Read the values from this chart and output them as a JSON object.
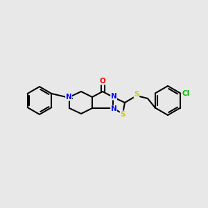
{
  "background_color": "#e8e8e8",
  "bond_color": "#000000",
  "atom_colors": {
    "N": "#0000ff",
    "O": "#ff0000",
    "S": "#cccc00",
    "Cl": "#00bb00",
    "C": "#000000"
  },
  "figsize": [
    3.0,
    3.0
  ],
  "dpi": 100
}
